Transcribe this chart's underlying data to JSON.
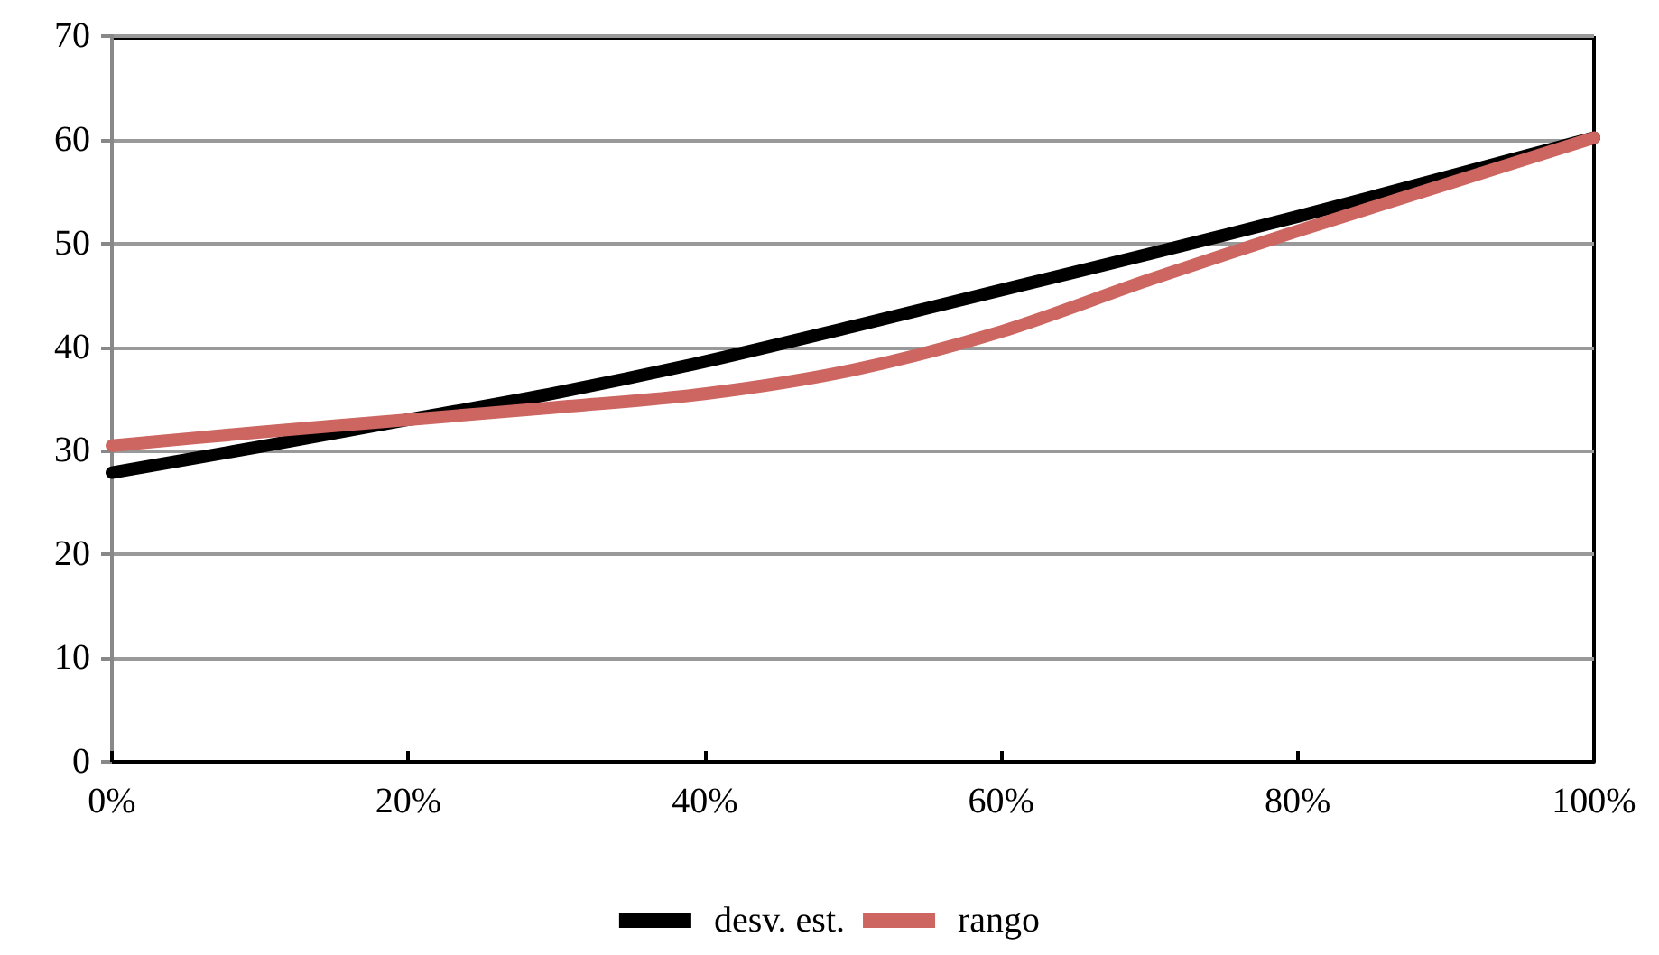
{
  "chart_data": {
    "type": "line",
    "x": [
      0,
      10,
      20,
      30,
      40,
      50,
      60,
      70,
      80,
      90,
      100
    ],
    "series": [
      {
        "name": "desv. est.",
        "color": "#000000",
        "values": [
          27.9,
          30.4,
          33,
          35.6,
          38.6,
          42,
          45.5,
          49,
          52.6,
          56.4,
          60.2
        ]
      },
      {
        "name": "rango",
        "color": "#cd6560",
        "values": [
          30.5,
          31.8,
          33,
          34.2,
          35.5,
          37.8,
          41.5,
          46.5,
          51.2,
          55.7,
          60.2
        ]
      }
    ],
    "xlim": [
      0,
      100
    ],
    "xticks": [
      {
        "value": 0,
        "label": "0%"
      },
      {
        "value": 20,
        "label": "20%"
      },
      {
        "value": 40,
        "label": "40%"
      },
      {
        "value": 60,
        "label": "60%"
      },
      {
        "value": 80,
        "label": "80%"
      },
      {
        "value": 100,
        "label": "100%"
      }
    ],
    "ylim": [
      0,
      70
    ],
    "yticks": [
      0,
      10,
      20,
      30,
      40,
      50,
      60,
      70
    ],
    "grid": "y",
    "legend": "bottom",
    "marker": "none",
    "line_style": "solid"
  }
}
